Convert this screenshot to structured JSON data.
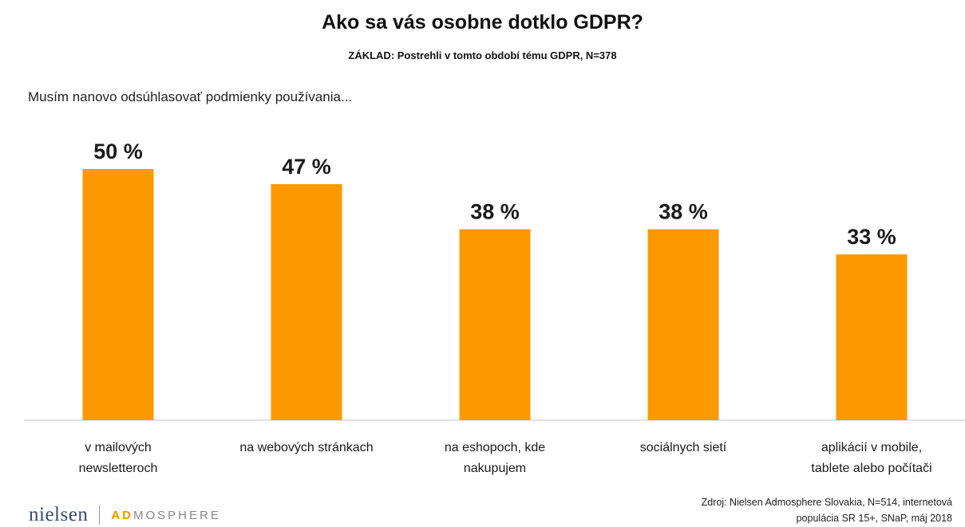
{
  "title": "Ako sa vás osobne dotklo GDPR?",
  "subtitle": "ZÁKLAD: Postrehli v tomto období tému GDPR, N=378",
  "question": "Musím nanovo odsúhlasovať podmienky používania...",
  "source": {
    "line1": "Zdroj: Nielsen Admosphere Slovakia, N=514, internetová",
    "line2": "populácia SR 15+, SNaP, máj 2018"
  },
  "logo": {
    "nielsen": "nielsen",
    "ad": "AD",
    "mosphere": "MOSPHERE"
  },
  "chart_data": {
    "type": "bar",
    "categories": [
      [
        "v mailových",
        "newsletteroch"
      ],
      [
        "na webových stránkach"
      ],
      [
        "na eshopoch, kde",
        "nakupujem"
      ],
      [
        "sociálnych sietí"
      ],
      [
        "aplikácií v mobile,",
        "tablete alebo počítači"
      ]
    ],
    "values": [
      50,
      47,
      38,
      38,
      33
    ],
    "value_labels": [
      "50 %",
      "47 %",
      "38 %",
      "38 %",
      "33 %"
    ],
    "ylim": [
      0,
      100
    ],
    "grid": false,
    "bar_color": "#FF9900",
    "axis_color": "#d9d9d9"
  }
}
